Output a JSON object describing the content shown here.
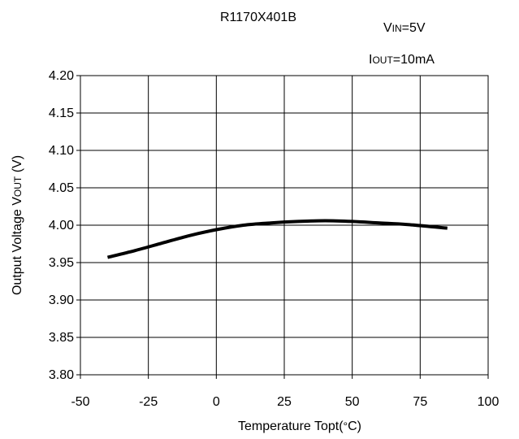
{
  "chart_data": {
    "type": "line",
    "title": "R1170X401B",
    "conditions": {
      "vin": {
        "main": "V",
        "sub": "IN",
        "rest": "=5V"
      },
      "iout": {
        "main": "I",
        "sub": "OUT",
        "rest": "=10mA"
      }
    },
    "xlabel": {
      "pre": "Temperature Topt(",
      "deg": "°",
      "post": "C)"
    },
    "ylabel": {
      "pre": "Output Voltage V",
      "sub": "OUT",
      "post": " (V)"
    },
    "xlim": [
      -50,
      100
    ],
    "ylim": [
      3.8,
      4.2
    ],
    "x_ticks": [
      "-50",
      "-25",
      "0",
      "25",
      "50",
      "75",
      "100"
    ],
    "y_ticks": [
      "3.80",
      "3.85",
      "3.90",
      "3.95",
      "4.00",
      "4.05",
      "4.10",
      "4.15",
      "4.20"
    ],
    "grid": true,
    "series": [
      {
        "color": "#000000",
        "x": [
          -40,
          -30,
          -20,
          -10,
          0,
          10,
          20,
          30,
          40,
          50,
          60,
          70,
          85
        ],
        "y": [
          3.957,
          3.966,
          3.976,
          3.986,
          3.994,
          4.0,
          4.003,
          4.005,
          4.006,
          4.005,
          4.003,
          4.001,
          3.996
        ]
      }
    ]
  }
}
